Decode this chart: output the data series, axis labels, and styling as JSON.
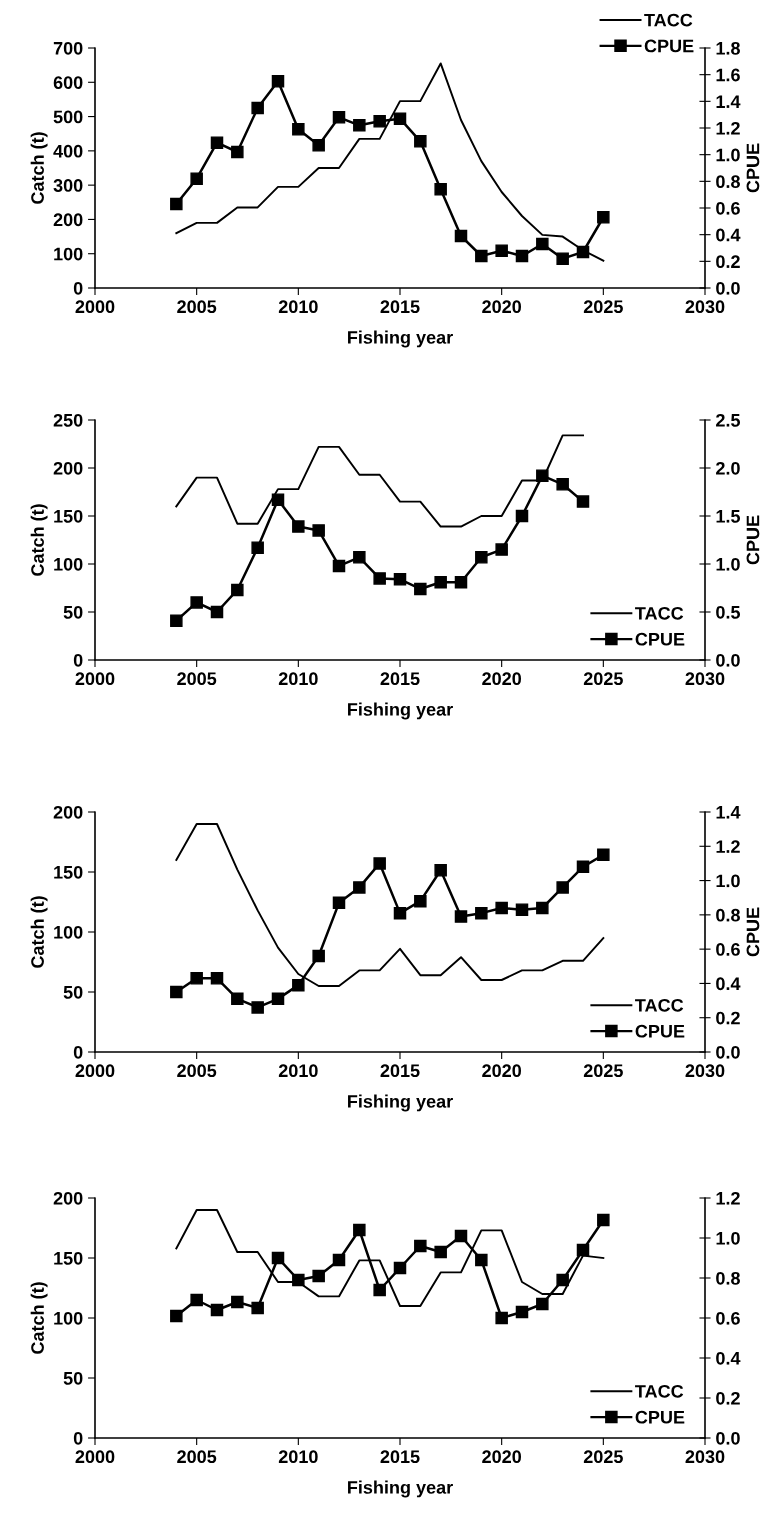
{
  "chart_data": [
    {
      "type": "line",
      "xlabel": "Fishing year",
      "ylabel": "Catch (t)",
      "y2label": "CPUE",
      "xlim": [
        2000,
        2030
      ],
      "xticks": [
        2000,
        2005,
        2010,
        2015,
        2020,
        2025,
        2030
      ],
      "ylim": [
        0,
        700
      ],
      "yticks": [
        0,
        100,
        200,
        300,
        400,
        500,
        600,
        700
      ],
      "y2lim": [
        0,
        1.8
      ],
      "y2ticks": [
        {
          "value": 0,
          "label": "0.0"
        },
        0.2,
        0.4,
        0.6,
        0.8,
        {
          "value": 1,
          "label": "1.0"
        },
        1.2,
        1.4,
        1.6,
        1.8
      ],
      "legend": "top right",
      "grid": false,
      "x": [
        2004,
        2005,
        2006,
        2007,
        2008,
        2009,
        2010,
        2011,
        2012,
        2013,
        2014,
        2015,
        2016,
        2017,
        2018,
        2019,
        2020,
        2021,
        2022,
        2023,
        2024,
        2025
      ],
      "series": [
        {
          "name": "TACC",
          "color": "#000000",
          "marker": "none",
          "values": [
            160,
            190,
            190,
            235,
            235,
            295,
            295,
            350,
            350,
            435,
            435,
            545,
            545,
            655,
            490,
            370,
            280,
            210,
            155,
            150,
            110,
            80
          ]
        },
        {
          "name": "CPUE",
          "color": "#000000",
          "marker": "square",
          "axis": "y2",
          "values": [
            0.63,
            0.82,
            1.09,
            1.02,
            1.35,
            1.55,
            1.19,
            1.07,
            1.28,
            1.22,
            1.25,
            1.27,
            1.1,
            0.74,
            0.39,
            0.24,
            0.28,
            0.24,
            0.33,
            0.22,
            0.27,
            0.53
          ]
        }
      ]
    },
    {
      "type": "line",
      "xlabel": "Fishing year",
      "ylabel": "Catch (t)",
      "y2label": "CPUE",
      "xlim": [
        2000,
        2030
      ],
      "xticks": [
        2000,
        2005,
        2010,
        2015,
        2020,
        2025,
        2030
      ],
      "ylim": [
        0,
        250
      ],
      "yticks": [
        0,
        50,
        100,
        150,
        200,
        250
      ],
      "y2lim": [
        0,
        2.5
      ],
      "y2ticks": [
        {
          "value": 0,
          "label": "0.0"
        },
        0.5,
        {
          "value": 1,
          "label": "1.0"
        },
        1.5,
        {
          "value": 2,
          "label": "2.0"
        },
        2.5
      ],
      "legend": "bottom right",
      "grid": false,
      "x": [
        2004,
        2005,
        2006,
        2007,
        2008,
        2009,
        2010,
        2011,
        2012,
        2013,
        2014,
        2015,
        2016,
        2017,
        2018,
        2019,
        2020,
        2021,
        2022,
        2023,
        2024
      ],
      "series": [
        {
          "name": "TACC",
          "color": "#000000",
          "marker": "none",
          "values": [
            160,
            190,
            190,
            142,
            142,
            178,
            178,
            222,
            222,
            193,
            193,
            165,
            165,
            139,
            139,
            150,
            150,
            187,
            187,
            234,
            234
          ]
        },
        {
          "name": "CPUE",
          "color": "#000000",
          "marker": "square",
          "axis": "y2",
          "values": [
            0.41,
            0.6,
            0.5,
            0.73,
            1.17,
            1.67,
            1.39,
            1.35,
            0.98,
            1.07,
            0.85,
            0.84,
            0.74,
            0.81,
            0.81,
            1.07,
            1.15,
            1.5,
            1.92,
            1.83,
            1.65
          ]
        }
      ]
    },
    {
      "type": "line",
      "xlabel": "Fishing year",
      "ylabel": "Catch (t)",
      "y2label": "CPUE",
      "xlim": [
        2000,
        2030
      ],
      "xticks": [
        2000,
        2005,
        2010,
        2015,
        2020,
        2025,
        2030
      ],
      "ylim": [
        0,
        200
      ],
      "yticks": [
        0,
        50,
        100,
        150,
        200
      ],
      "y2lim": [
        0,
        1.4
      ],
      "y2ticks": [
        {
          "value": 0,
          "label": "0.0"
        },
        0.2,
        0.4,
        0.6,
        0.8,
        {
          "value": 1,
          "label": "1.0"
        },
        1.2,
        1.4
      ],
      "legend": "bottom right",
      "grid": false,
      "x": [
        2004,
        2005,
        2006,
        2007,
        2008,
        2009,
        2010,
        2011,
        2012,
        2013,
        2014,
        2015,
        2016,
        2017,
        2018,
        2019,
        2020,
        2021,
        2022,
        2023,
        2024,
        2025
      ],
      "series": [
        {
          "name": "TACC",
          "color": "#000000",
          "marker": "none",
          "values": [
            160,
            190,
            190,
            152,
            118,
            87,
            65,
            55,
            55,
            68,
            68,
            86,
            64,
            64,
            79,
            60,
            60,
            68,
            68,
            76,
            76,
            95
          ]
        },
        {
          "name": "CPUE",
          "color": "#000000",
          "marker": "square",
          "axis": "y2",
          "values": [
            0.35,
            0.43,
            0.43,
            0.31,
            0.26,
            0.31,
            0.39,
            0.56,
            0.87,
            0.96,
            1.1,
            0.81,
            0.88,
            1.06,
            0.79,
            0.81,
            0.84,
            0.83,
            0.84,
            0.96,
            1.08,
            1.15
          ]
        }
      ]
    },
    {
      "type": "line",
      "xlabel": "Fishing year",
      "ylabel": "Catch (t)",
      "xlim": [
        2000,
        2030
      ],
      "xticks": [
        2000,
        2005,
        2010,
        2015,
        2020,
        2025,
        2030
      ],
      "ylim": [
        0,
        200
      ],
      "yticks": [
        0,
        50,
        100,
        150,
        200
      ],
      "y2lim": [
        0,
        1.2
      ],
      "y2ticks": [
        {
          "value": 0,
          "label": "0.0"
        },
        0.2,
        0.4,
        0.6,
        0.8,
        {
          "value": 1,
          "label": "1.0"
        },
        1.2
      ],
      "legend": "bottom right",
      "grid": false,
      "x": [
        2004,
        2005,
        2006,
        2007,
        2008,
        2009,
        2010,
        2011,
        2012,
        2013,
        2014,
        2015,
        2016,
        2017,
        2018,
        2019,
        2020,
        2021,
        2022,
        2023,
        2024,
        2025
      ],
      "series": [
        {
          "name": "TACC",
          "color": "#000000",
          "marker": "none",
          "values": [
            158,
            190,
            190,
            155,
            155,
            130,
            130,
            118,
            118,
            148,
            148,
            110,
            110,
            138,
            138,
            173,
            173,
            130,
            120,
            120,
            152,
            150
          ]
        },
        {
          "name": "CPUE",
          "color": "#000000",
          "marker": "square",
          "axis": "y2",
          "values": [
            0.61,
            0.69,
            0.64,
            0.68,
            0.65,
            0.9,
            0.79,
            0.81,
            0.89,
            1.04,
            0.74,
            0.85,
            0.96,
            0.93,
            1.01,
            0.89,
            0.6,
            0.63,
            0.67,
            0.79,
            0.94,
            1.09
          ]
        }
      ]
    }
  ]
}
